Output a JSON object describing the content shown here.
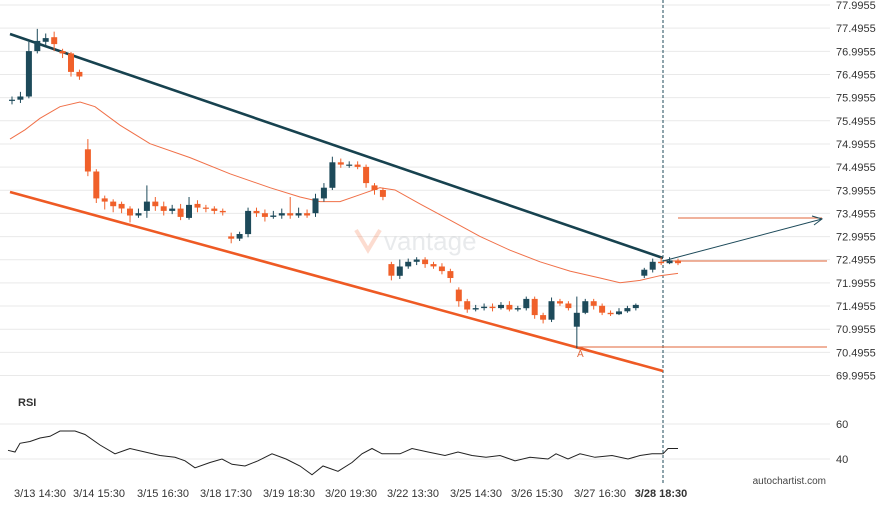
{
  "colors": {
    "bull": "#1d4a5a",
    "bear": "#f0602a",
    "resistance": "#17424f",
    "support": "#ee5a24",
    "ma": "#f07048",
    "projection": "#1d4a5a",
    "level": "#e0663a",
    "grid": "#e9e9e9",
    "vline": "#1d4a5a",
    "rsi": "#222222",
    "axis_text": "#333333"
  },
  "watermark": "vantage",
  "credit": "autochartist.com",
  "rsi_label": "RSI",
  "point_label": "A",
  "chart_data": {
    "type": "candlestick",
    "y_ticks": [
      "77.9955",
      "77.4955",
      "76.9955",
      "76.4955",
      "75.9955",
      "75.4955",
      "74.9955",
      "74.4955",
      "73.9955",
      "73.4955",
      "72.9955",
      "72.4955",
      "71.9955",
      "71.4955",
      "70.9955",
      "70.4955",
      "69.9955"
    ],
    "ylim": [
      69.75,
      78.05
    ],
    "x_ticks": [
      "3/13 14:30",
      "3/14 15:30",
      "3/15 16:30",
      "3/18 17:30",
      "3/19 18:30",
      "3/20 19:30",
      "3/22 13:30",
      "3/25 14:30",
      "3/26 15:30",
      "3/27 16:30",
      "3/28 18:30"
    ],
    "x_ticks_bold": "3/28 18:30",
    "rsi_ticks": [
      "60",
      "40"
    ],
    "rsi_ylim": [
      25,
      72
    ],
    "candles": [
      [
        75.95,
        75.95,
        76.02,
        75.85
      ],
      [
        75.95,
        76.02,
        76.12,
        75.88
      ],
      [
        76.02,
        77.0,
        77.2,
        75.98
      ],
      [
        77.0,
        77.22,
        77.48,
        76.95
      ],
      [
        77.2,
        77.28,
        77.38,
        77.12
      ],
      [
        77.3,
        77.15,
        77.42,
        77.0
      ],
      [
        77.0,
        76.95,
        77.05,
        76.85
      ],
      [
        76.95,
        76.55,
        76.98,
        76.45
      ],
      [
        76.55,
        76.45,
        76.6,
        76.38
      ],
      [
        74.88,
        74.4,
        75.1,
        74.3
      ],
      [
        74.4,
        73.82,
        74.45,
        73.72
      ],
      [
        73.82,
        73.75,
        73.88,
        73.58
      ],
      [
        73.75,
        73.65,
        73.8,
        73.52
      ],
      [
        73.7,
        73.6,
        73.75,
        73.5
      ],
      [
        73.6,
        73.45,
        73.65,
        73.3
      ],
      [
        73.45,
        73.5,
        73.6,
        73.4
      ],
      [
        73.55,
        73.75,
        74.1,
        73.4
      ],
      [
        73.75,
        73.65,
        73.85,
        73.55
      ],
      [
        73.65,
        73.55,
        73.75,
        73.45
      ],
      [
        73.55,
        73.6,
        73.68,
        73.48
      ],
      [
        73.6,
        73.42,
        73.7,
        73.35
      ],
      [
        73.4,
        73.68,
        73.85,
        73.36
      ],
      [
        73.7,
        73.62,
        73.78,
        73.52
      ],
      [
        73.62,
        73.6,
        73.68,
        73.52
      ],
      [
        73.6,
        73.55,
        73.65,
        73.48
      ],
      [
        73.55,
        73.52,
        73.6,
        73.45
      ],
      [
        73.0,
        72.95,
        73.08,
        72.85
      ],
      [
        72.95,
        73.05,
        73.1,
        72.9
      ],
      [
        73.05,
        73.55,
        73.62,
        72.98
      ],
      [
        73.55,
        73.5,
        73.62,
        73.42
      ],
      [
        73.5,
        73.42,
        73.58,
        73.32
      ],
      [
        73.42,
        73.45,
        73.55,
        73.38
      ],
      [
        73.45,
        73.5,
        73.6,
        73.38
      ],
      [
        73.5,
        73.45,
        73.85,
        73.38
      ],
      [
        73.45,
        73.5,
        73.62,
        73.4
      ],
      [
        73.5,
        73.45,
        73.58,
        73.4
      ],
      [
        73.5,
        73.82,
        73.92,
        73.42
      ],
      [
        73.82,
        74.05,
        74.15,
        73.75
      ],
      [
        74.05,
        74.6,
        74.72,
        74.0
      ],
      [
        74.6,
        74.55,
        74.68,
        74.48
      ],
      [
        74.55,
        74.55,
        74.62,
        74.48
      ],
      [
        74.55,
        74.5,
        74.62,
        74.45
      ],
      [
        74.5,
        74.15,
        74.55,
        74.05
      ],
      [
        74.1,
        74.0,
        74.15,
        73.9
      ],
      [
        74.0,
        73.85,
        74.05,
        73.78
      ],
      [
        72.4,
        72.15,
        72.45,
        72.05
      ],
      [
        72.15,
        72.35,
        72.5,
        72.08
      ],
      [
        72.35,
        72.45,
        72.52,
        72.3
      ],
      [
        72.45,
        72.5,
        72.55,
        72.38
      ],
      [
        72.5,
        72.4,
        72.55,
        72.32
      ],
      [
        72.4,
        72.35,
        72.45,
        72.3
      ],
      [
        72.35,
        72.25,
        72.42,
        72.18
      ],
      [
        72.25,
        72.1,
        72.3,
        72.0
      ],
      [
        71.85,
        71.6,
        71.9,
        71.48
      ],
      [
        71.6,
        71.42,
        71.65,
        71.35
      ],
      [
        71.42,
        71.45,
        71.52,
        71.38
      ],
      [
        71.45,
        71.48,
        71.55,
        71.4
      ],
      [
        71.48,
        71.45,
        71.55,
        71.38
      ],
      [
        71.45,
        71.52,
        71.58,
        71.42
      ],
      [
        71.52,
        71.42,
        71.6,
        71.38
      ],
      [
        71.42,
        71.45,
        71.5,
        71.38
      ],
      [
        71.45,
        71.65,
        71.7,
        71.4
      ],
      [
        71.65,
        71.3,
        71.7,
        71.22
      ],
      [
        71.3,
        71.2,
        71.35,
        71.12
      ],
      [
        71.2,
        71.6,
        71.68,
        71.15
      ],
      [
        71.6,
        71.55,
        71.65,
        71.5
      ],
      [
        71.55,
        71.45,
        71.6,
        71.4
      ],
      [
        71.05,
        71.35,
        71.7,
        70.58
      ],
      [
        71.35,
        71.6,
        71.65,
        71.32
      ],
      [
        71.6,
        71.5,
        71.65,
        71.42
      ],
      [
        71.5,
        71.35,
        71.55,
        71.3
      ],
      [
        71.35,
        71.32,
        71.4,
        71.28
      ],
      [
        71.32,
        71.38,
        71.45,
        71.3
      ],
      [
        71.38,
        71.45,
        71.5,
        71.35
      ],
      [
        71.45,
        71.52,
        71.55,
        71.4
      ],
      [
        72.15,
        72.28,
        72.32,
        72.1
      ],
      [
        72.28,
        72.45,
        72.52,
        72.22
      ],
      [
        72.45,
        72.42,
        72.55,
        72.38
      ],
      [
        72.42,
        72.48,
        72.55,
        72.4
      ],
      [
        72.48,
        72.42,
        72.52,
        72.38
      ]
    ],
    "ma": [
      [
        10,
        75.1
      ],
      [
        25,
        75.3
      ],
      [
        40,
        75.55
      ],
      [
        60,
        75.8
      ],
      [
        80,
        75.9
      ],
      [
        95,
        75.8
      ],
      [
        120,
        75.4
      ],
      [
        150,
        75.0
      ],
      [
        190,
        74.7
      ],
      [
        230,
        74.35
      ],
      [
        270,
        74.05
      ],
      [
        300,
        73.85
      ],
      [
        320,
        73.75
      ],
      [
        340,
        73.75
      ],
      [
        360,
        73.9
      ],
      [
        380,
        74.05
      ],
      [
        395,
        74.0
      ],
      [
        420,
        73.7
      ],
      [
        450,
        73.35
      ],
      [
        480,
        73.0
      ],
      [
        510,
        72.7
      ],
      [
        540,
        72.45
      ],
      [
        570,
        72.25
      ],
      [
        600,
        72.1
      ],
      [
        620,
        72.0
      ],
      [
        640,
        72.05
      ],
      [
        660,
        72.15
      ],
      [
        678,
        72.2
      ]
    ],
    "rsi_path": [
      [
        8,
        45
      ],
      [
        15,
        44
      ],
      [
        20,
        49
      ],
      [
        30,
        50
      ],
      [
        40,
        52
      ],
      [
        50,
        53
      ],
      [
        60,
        56
      ],
      [
        75,
        56
      ],
      [
        85,
        54
      ],
      [
        100,
        48
      ],
      [
        115,
        43
      ],
      [
        130,
        46
      ],
      [
        145,
        44
      ],
      [
        160,
        42
      ],
      [
        175,
        41
      ],
      [
        185,
        39
      ],
      [
        195,
        35
      ],
      [
        210,
        38
      ],
      [
        222,
        40
      ],
      [
        232,
        37
      ],
      [
        245,
        36
      ],
      [
        258,
        39
      ],
      [
        272,
        43
      ],
      [
        286,
        40
      ],
      [
        300,
        36
      ],
      [
        312,
        31
      ],
      [
        323,
        36
      ],
      [
        338,
        33
      ],
      [
        352,
        38
      ],
      [
        362,
        43
      ],
      [
        372,
        46
      ],
      [
        382,
        43
      ],
      [
        400,
        43
      ],
      [
        412,
        46
      ],
      [
        428,
        44
      ],
      [
        445,
        42
      ],
      [
        458,
        44
      ],
      [
        472,
        42
      ],
      [
        486,
        41
      ],
      [
        500,
        42
      ],
      [
        515,
        39
      ],
      [
        530,
        41
      ],
      [
        548,
        40
      ],
      [
        556,
        43
      ],
      [
        568,
        40
      ],
      [
        580,
        43
      ],
      [
        595,
        41
      ],
      [
        612,
        42
      ],
      [
        628,
        40
      ],
      [
        640,
        42
      ],
      [
        652,
        43
      ],
      [
        663,
        43
      ],
      [
        668,
        46
      ],
      [
        678,
        46
      ]
    ],
    "resistance_line": [
      [
        10,
        34
      ],
      [
        663,
        258
      ]
    ],
    "support_line": [
      [
        10,
        192
      ],
      [
        663,
        371
      ]
    ],
    "projection": [
      [
        663,
        261
      ],
      [
        822,
        219
      ]
    ],
    "target_level": [
      [
        678,
        218
      ],
      [
        822,
        218
      ]
    ],
    "current_level": [
      [
        663,
        261
      ],
      [
        827,
        261
      ]
    ],
    "point_a_level": [
      [
        578,
        347
      ],
      [
        827,
        347
      ]
    ],
    "vertical_marker_x": 663
  }
}
